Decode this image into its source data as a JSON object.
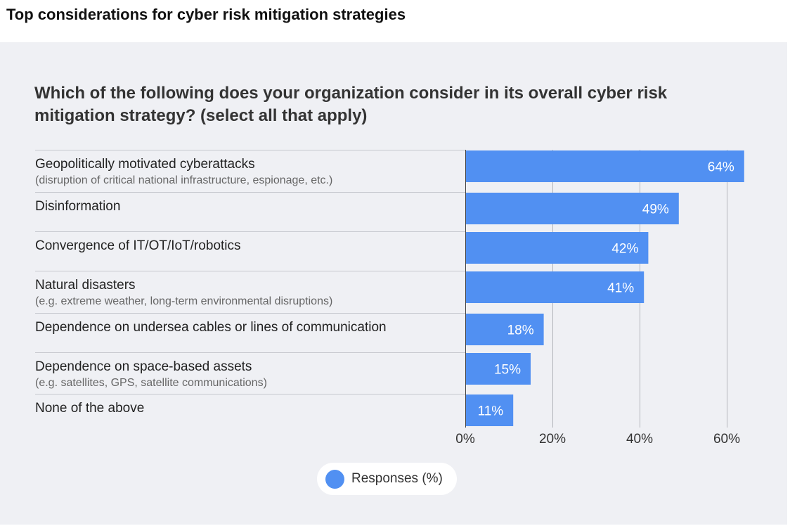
{
  "header": {
    "title": "Top considerations for cyber risk mitigation strategies"
  },
  "question": "Which of the following does your organization consider in its overall cyber risk mitigation strategy? (select all that apply)",
  "colors": {
    "bar": "#5190f2",
    "panel": "#eff0f4",
    "divider": "#c6c8ce",
    "grid": "#b3b5bb"
  },
  "chart_data": {
    "type": "bar",
    "orientation": "horizontal",
    "categories": [
      {
        "label": "Geopolitically motivated cyberattacks",
        "sublabel": "(disruption of critical national infrastructure, espionage, etc.)"
      },
      {
        "label": "Disinformation",
        "sublabel": ""
      },
      {
        "label": "Convergence of IT/OT/IoT/robotics",
        "sublabel": ""
      },
      {
        "label": "Natural disasters",
        "sublabel": "(e.g. extreme weather, long-term environmental disruptions)"
      },
      {
        "label": "Dependence on undersea cables or lines of communication",
        "sublabel": ""
      },
      {
        "label": "Dependence on space-based assets",
        "sublabel": "(e.g. satellites, GPS, satellite communications)"
      },
      {
        "label": "None of the above",
        "sublabel": ""
      }
    ],
    "series": [
      {
        "name": "Responses (%)",
        "values": [
          64,
          49,
          42,
          41,
          18,
          15,
          11
        ],
        "value_labels": [
          "64%",
          "49%",
          "42%",
          "41%",
          "18%",
          "15%",
          "11%"
        ]
      }
    ],
    "xlim": [
      0,
      64
    ],
    "ticks": [
      0,
      20,
      40,
      60
    ],
    "tick_labels": [
      "0%",
      "20%",
      "40%",
      "60%"
    ],
    "grid": true,
    "legend_position": "bottom-center"
  },
  "legend": {
    "label": "Responses (%)"
  }
}
